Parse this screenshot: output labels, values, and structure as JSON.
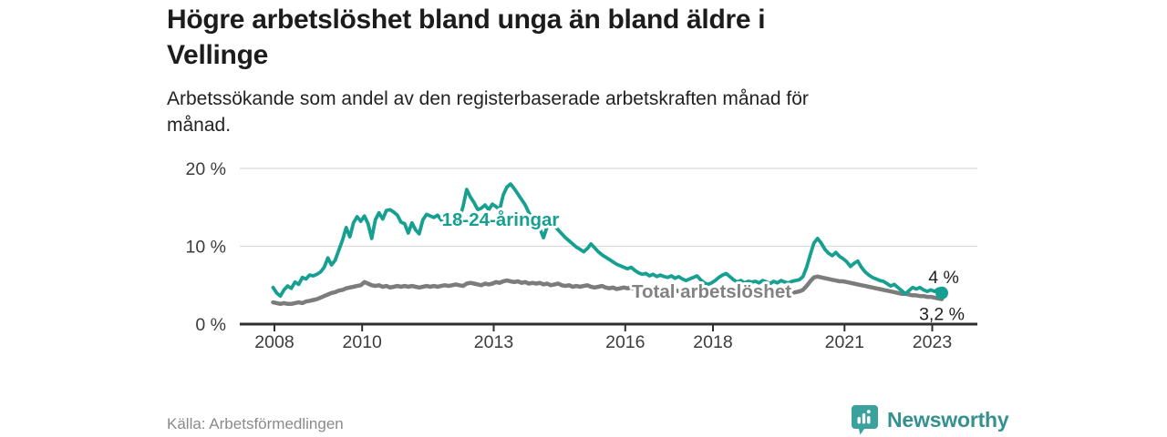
{
  "header": {
    "title_lines": [
      "Högre arbetslöshet bland unga än bland äldre i",
      "Vellinge"
    ],
    "subtitle_lines": [
      "Arbetssökande som andel av den registerbaserade arbetskraften månad för",
      "månad."
    ]
  },
  "chart_data": {
    "type": "line",
    "title": "Högre arbetslöshet bland unga än bland äldre i Vellinge",
    "x_start": "2008-01",
    "x_end": "2023-04",
    "points_per_year": 12,
    "x_tick_years": [
      2008,
      2010,
      2013,
      2016,
      2018,
      2021,
      2023
    ],
    "y_ticks": [
      {
        "value": 0,
        "label": "0 %"
      },
      {
        "value": 10,
        "label": "10 %"
      },
      {
        "value": 20,
        "label": "20 %"
      }
    ],
    "ylim": [
      0,
      20
    ],
    "grid": "horizontal",
    "legend_position": "inline-labels",
    "series": [
      {
        "name": "18-24-åringar",
        "color": "#16A091",
        "end_label": "4 %",
        "end_dot": true,
        "values": [
          4.7,
          4.0,
          3.6,
          4.4,
          4.9,
          4.6,
          5.4,
          5.1,
          6.0,
          5.8,
          6.3,
          6.2,
          6.4,
          6.7,
          7.3,
          8.5,
          7.6,
          8.2,
          9.5,
          10.8,
          12.4,
          11.2,
          13.0,
          13.8,
          13.2,
          13.9,
          12.9,
          11.0,
          13.4,
          14.3,
          13.5,
          14.6,
          14.7,
          14.4,
          14.0,
          13.1,
          12.9,
          11.7,
          13.0,
          12.1,
          11.6,
          13.4,
          14.1,
          13.9,
          13.7,
          14.0,
          13.4,
          12.9,
          12.7,
          13.2,
          12.5,
          13.6,
          15.1,
          17.3,
          16.3,
          15.6,
          14.7,
          14.9,
          15.3,
          14.7,
          15.4,
          15.1,
          14.7,
          16.6,
          17.6,
          18.0,
          17.4,
          16.7,
          16.0,
          15.3,
          14.3,
          13.6,
          13.1,
          12.3,
          11.1,
          12.5,
          13.2,
          12.7,
          12.1,
          11.6,
          11.1,
          10.7,
          10.3,
          9.9,
          9.6,
          9.3,
          9.7,
          10.3,
          9.8,
          9.3,
          8.9,
          8.6,
          8.3,
          8.0,
          7.7,
          7.5,
          7.3,
          7.1,
          7.3,
          6.9,
          6.6,
          6.4,
          6.5,
          6.2,
          6.4,
          6.1,
          6.3,
          6.1,
          6.0,
          6.2,
          5.9,
          6.1,
          5.8,
          5.6,
          5.8,
          6.0,
          6.2,
          5.7,
          5.3,
          5.1,
          5.3,
          5.6,
          6.0,
          6.3,
          6.5,
          6.1,
          5.7,
          5.4,
          5.6,
          5.3,
          5.5,
          5.4,
          5.5,
          5.3,
          5.6,
          5.4,
          5.2,
          5.5,
          5.3,
          5.6,
          5.4,
          5.3,
          5.5,
          5.6,
          5.7,
          6.1,
          7.3,
          8.9,
          10.4,
          11.0,
          10.4,
          9.6,
          9.1,
          8.8,
          9.2,
          8.7,
          8.4,
          8.0,
          7.4,
          7.8,
          8.1,
          7.3,
          6.7,
          6.3,
          6.0,
          5.8,
          5.6,
          5.5,
          5.2,
          4.9,
          5.1,
          4.7,
          4.3,
          3.9,
          4.3,
          4.7,
          4.5,
          4.7,
          4.4,
          4.2,
          4.4,
          4.2,
          4.5,
          4.0
        ]
      },
      {
        "name": "Total arbetslöshet",
        "color": "#7C7C7C",
        "end_label": "3,2 %",
        "end_dot": false,
        "values": [
          2.8,
          2.7,
          2.6,
          2.7,
          2.6,
          2.6,
          2.7,
          2.8,
          2.7,
          2.9,
          3.0,
          3.1,
          3.2,
          3.4,
          3.6,
          3.8,
          4.0,
          4.1,
          4.3,
          4.4,
          4.6,
          4.7,
          4.8,
          4.9,
          5.0,
          5.4,
          5.2,
          5.0,
          4.9,
          5.0,
          4.8,
          4.9,
          4.7,
          4.8,
          4.9,
          4.8,
          4.9,
          4.8,
          4.9,
          4.8,
          4.7,
          4.8,
          4.9,
          4.8,
          4.9,
          4.8,
          4.9,
          5.0,
          4.9,
          5.0,
          5.1,
          5.0,
          4.9,
          5.2,
          5.3,
          5.2,
          5.1,
          5.0,
          5.2,
          5.1,
          5.2,
          5.4,
          5.3,
          5.5,
          5.6,
          5.5,
          5.4,
          5.5,
          5.3,
          5.4,
          5.2,
          5.3,
          5.2,
          5.3,
          5.1,
          5.2,
          5.0,
          5.1,
          5.2,
          5.0,
          4.9,
          5.0,
          4.8,
          4.9,
          4.8,
          4.9,
          5.0,
          4.8,
          4.7,
          4.8,
          4.9,
          4.7,
          4.6,
          4.7,
          4.5,
          4.6,
          4.7,
          4.6,
          4.7,
          4.5,
          4.4,
          4.5,
          4.6,
          4.4,
          4.5,
          4.3,
          4.4,
          4.5,
          4.4,
          4.3,
          4.4,
          4.2,
          4.3,
          4.4,
          4.3,
          4.2,
          4.3,
          4.1,
          4.2,
          4.3,
          4.2,
          4.1,
          4.2,
          4.3,
          4.2,
          4.1,
          4.0,
          4.1,
          4.0,
          3.9,
          4.0,
          4.1,
          4.0,
          3.9,
          4.0,
          3.9,
          4.0,
          4.1,
          4.0,
          3.9,
          4.0,
          3.9,
          4.0,
          4.1,
          4.2,
          4.4,
          4.9,
          5.5,
          6.0,
          6.1,
          6.0,
          5.9,
          5.8,
          5.7,
          5.6,
          5.5,
          5.5,
          5.4,
          5.3,
          5.2,
          5.1,
          5.0,
          4.9,
          4.8,
          4.7,
          4.6,
          4.5,
          4.4,
          4.3,
          4.2,
          4.1,
          4.0,
          3.9,
          3.9,
          3.8,
          3.7,
          3.7,
          3.6,
          3.6,
          3.5,
          3.5,
          3.4,
          3.3,
          3.2
        ]
      }
    ]
  },
  "footer": {
    "source": "Källa: Arbetsförmedlingen",
    "brand": "Newsworthy",
    "brand_icon": "newsworthy-pin-barchart-icon",
    "brand_color": "#35918F"
  },
  "colors": {
    "youth_line": "#16A091",
    "total_line": "#7C7C7C",
    "axis": "#2F2F2F",
    "gridline": "#DBDBDB",
    "text": "#1C1C1C",
    "muted_text": "#8A8A8A"
  }
}
